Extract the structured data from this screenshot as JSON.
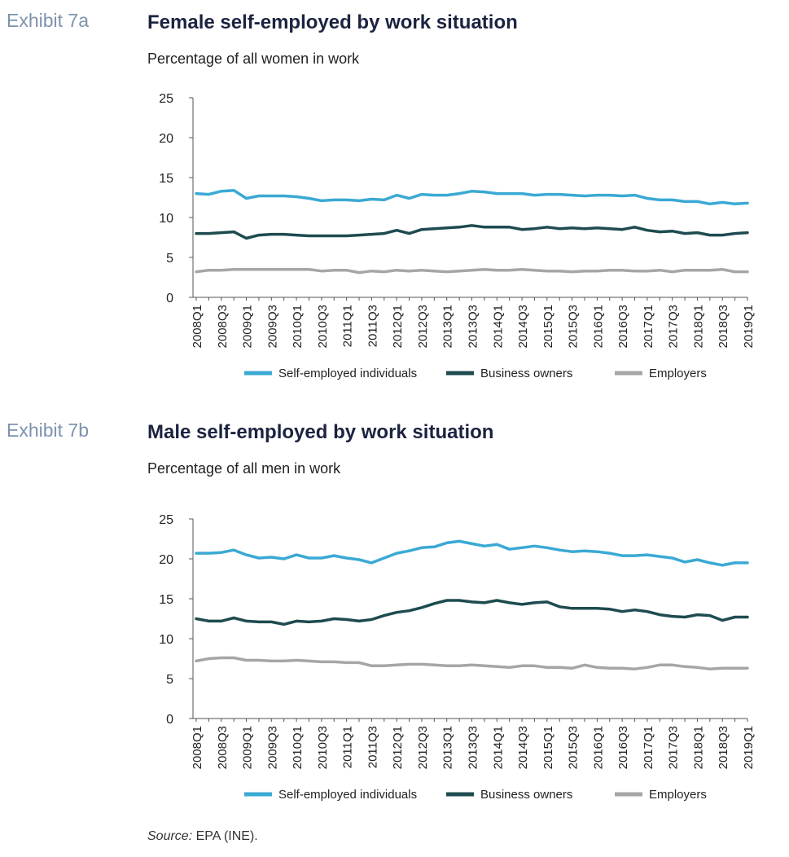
{
  "exhibits": [
    {
      "label": "Exhibit 7a",
      "title": "Female self-employed by work situation",
      "subtitle": "Percentage of all women in work"
    },
    {
      "label": "Exhibit 7b",
      "title": "Male self-employed by work situation",
      "subtitle": "Percentage of all men in work"
    }
  ],
  "source": {
    "prefix": "Source:",
    "text": " EPA (INE)."
  },
  "colors": {
    "self_employed": "#3aa9d4",
    "business_owners": "#1e4b4f",
    "employers": "#a6a6a6"
  },
  "chart_data": [
    {
      "type": "line",
      "title": "Female self-employed by work situation",
      "subtitle": "Percentage of all women in work",
      "ylim": [
        0,
        25
      ],
      "yticks": [
        0,
        5,
        10,
        15,
        20,
        25
      ],
      "x_tick_labels": [
        "2008Q1",
        "2008Q3",
        "2009Q1",
        "2009Q3",
        "2010Q1",
        "2010Q3",
        "2011Q1",
        "2011Q3",
        "2012Q1",
        "2012Q3",
        "2013Q1",
        "2013Q3",
        "2014Q1",
        "2014Q3",
        "2015Q1",
        "2015Q3",
        "2016Q1",
        "2016Q3",
        "2017Q1",
        "2017Q3",
        "2018Q1",
        "2018Q3",
        "2019Q1"
      ],
      "x": [
        "2008Q1",
        "2008Q2",
        "2008Q3",
        "2008Q4",
        "2009Q1",
        "2009Q2",
        "2009Q3",
        "2009Q4",
        "2010Q1",
        "2010Q2",
        "2010Q3",
        "2010Q4",
        "2011Q1",
        "2011Q2",
        "2011Q3",
        "2011Q4",
        "2012Q1",
        "2012Q2",
        "2012Q3",
        "2012Q4",
        "2013Q1",
        "2013Q2",
        "2013Q3",
        "2013Q4",
        "2014Q1",
        "2014Q2",
        "2014Q3",
        "2014Q4",
        "2015Q1",
        "2015Q2",
        "2015Q3",
        "2015Q4",
        "2016Q1",
        "2016Q2",
        "2016Q3",
        "2016Q4",
        "2017Q1",
        "2017Q2",
        "2017Q3",
        "2017Q4",
        "2018Q1",
        "2018Q2",
        "2018Q3",
        "2018Q4",
        "2019Q1"
      ],
      "legend": "bottom",
      "grid": false,
      "series": [
        {
          "name": "Self-employed individuals",
          "color": "#3aa9d4",
          "values": [
            13.0,
            12.9,
            13.3,
            13.4,
            12.4,
            12.7,
            12.7,
            12.7,
            12.6,
            12.4,
            12.1,
            12.2,
            12.2,
            12.1,
            12.3,
            12.2,
            12.8,
            12.4,
            12.9,
            12.8,
            12.8,
            13.0,
            13.3,
            13.2,
            13.0,
            13.0,
            13.0,
            12.8,
            12.9,
            12.9,
            12.8,
            12.7,
            12.8,
            12.8,
            12.7,
            12.8,
            12.4,
            12.2,
            12.2,
            12.0,
            12.0,
            11.7,
            11.9,
            11.7,
            11.8
          ]
        },
        {
          "name": "Business owners",
          "color": "#1e4b4f",
          "values": [
            8.0,
            8.0,
            8.1,
            8.2,
            7.4,
            7.8,
            7.9,
            7.9,
            7.8,
            7.7,
            7.7,
            7.7,
            7.7,
            7.8,
            7.9,
            8.0,
            8.4,
            8.0,
            8.5,
            8.6,
            8.7,
            8.8,
            9.0,
            8.8,
            8.8,
            8.8,
            8.5,
            8.6,
            8.8,
            8.6,
            8.7,
            8.6,
            8.7,
            8.6,
            8.5,
            8.8,
            8.4,
            8.2,
            8.3,
            8.0,
            8.1,
            7.8,
            7.8,
            8.0,
            8.1
          ]
        },
        {
          "name": "Employers",
          "color": "#a6a6a6",
          "values": [
            3.2,
            3.4,
            3.4,
            3.5,
            3.5,
            3.5,
            3.5,
            3.5,
            3.5,
            3.5,
            3.3,
            3.4,
            3.4,
            3.1,
            3.3,
            3.2,
            3.4,
            3.3,
            3.4,
            3.3,
            3.2,
            3.3,
            3.4,
            3.5,
            3.4,
            3.4,
            3.5,
            3.4,
            3.3,
            3.3,
            3.2,
            3.3,
            3.3,
            3.4,
            3.4,
            3.3,
            3.3,
            3.4,
            3.2,
            3.4,
            3.4,
            3.4,
            3.5,
            3.2,
            3.2
          ]
        }
      ]
    },
    {
      "type": "line",
      "title": "Male self-employed by work situation",
      "subtitle": "Percentage of all men in work",
      "ylim": [
        0,
        25
      ],
      "yticks": [
        0,
        5,
        10,
        15,
        20,
        25
      ],
      "x_tick_labels": [
        "2008Q1",
        "2008Q3",
        "2009Q1",
        "2009Q3",
        "2010Q1",
        "2010Q3",
        "2011Q1",
        "2011Q3",
        "2012Q1",
        "2012Q3",
        "2013Q1",
        "2013Q3",
        "2014Q1",
        "2014Q3",
        "2015Q1",
        "2015Q3",
        "2016Q1",
        "2016Q3",
        "2017Q1",
        "2017Q3",
        "2018Q1",
        "2018Q3",
        "2019Q1"
      ],
      "x": [
        "2008Q1",
        "2008Q2",
        "2008Q3",
        "2008Q4",
        "2009Q1",
        "2009Q2",
        "2009Q3",
        "2009Q4",
        "2010Q1",
        "2010Q2",
        "2010Q3",
        "2010Q4",
        "2011Q1",
        "2011Q2",
        "2011Q3",
        "2011Q4",
        "2012Q1",
        "2012Q2",
        "2012Q3",
        "2012Q4",
        "2013Q1",
        "2013Q2",
        "2013Q3",
        "2013Q4",
        "2014Q1",
        "2014Q2",
        "2014Q3",
        "2014Q4",
        "2015Q1",
        "2015Q2",
        "2015Q3",
        "2015Q4",
        "2016Q1",
        "2016Q2",
        "2016Q3",
        "2016Q4",
        "2017Q1",
        "2017Q2",
        "2017Q3",
        "2017Q4",
        "2018Q1",
        "2018Q2",
        "2018Q3",
        "2018Q4",
        "2019Q1"
      ],
      "legend": "bottom",
      "grid": false,
      "series": [
        {
          "name": "Self-employed individuals",
          "color": "#3aa9d4",
          "values": [
            20.7,
            20.7,
            20.8,
            21.1,
            20.5,
            20.1,
            20.2,
            20.0,
            20.5,
            20.1,
            20.1,
            20.4,
            20.1,
            19.9,
            19.5,
            20.1,
            20.7,
            21.0,
            21.4,
            21.5,
            22.0,
            22.2,
            21.9,
            21.6,
            21.8,
            21.2,
            21.4,
            21.6,
            21.4,
            21.1,
            20.9,
            21.0,
            20.9,
            20.7,
            20.4,
            20.4,
            20.5,
            20.3,
            20.1,
            19.6,
            19.9,
            19.5,
            19.2,
            19.5,
            19.5
          ]
        },
        {
          "name": "Business owners",
          "color": "#1e4b4f",
          "values": [
            12.5,
            12.2,
            12.2,
            12.6,
            12.2,
            12.1,
            12.1,
            11.8,
            12.2,
            12.1,
            12.2,
            12.5,
            12.4,
            12.2,
            12.4,
            12.9,
            13.3,
            13.5,
            13.9,
            14.4,
            14.8,
            14.8,
            14.6,
            14.5,
            14.8,
            14.5,
            14.3,
            14.5,
            14.6,
            14.0,
            13.8,
            13.8,
            13.8,
            13.7,
            13.4,
            13.6,
            13.4,
            13.0,
            12.8,
            12.7,
            13.0,
            12.9,
            12.3,
            12.7,
            12.7
          ]
        },
        {
          "name": "Employers",
          "color": "#a6a6a6",
          "values": [
            7.2,
            7.5,
            7.6,
            7.6,
            7.3,
            7.3,
            7.2,
            7.2,
            7.3,
            7.2,
            7.1,
            7.1,
            7.0,
            7.0,
            6.6,
            6.6,
            6.7,
            6.8,
            6.8,
            6.7,
            6.6,
            6.6,
            6.7,
            6.6,
            6.5,
            6.4,
            6.6,
            6.6,
            6.4,
            6.4,
            6.3,
            6.7,
            6.4,
            6.3,
            6.3,
            6.2,
            6.4,
            6.7,
            6.7,
            6.5,
            6.4,
            6.2,
            6.3,
            6.3,
            6.3
          ]
        }
      ]
    }
  ]
}
